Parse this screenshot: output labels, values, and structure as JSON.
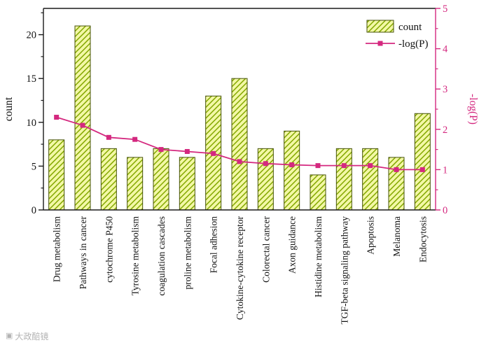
{
  "figure": {
    "watermark_icon": "▣",
    "watermark_text": "大政醅镜"
  },
  "chart_data": {
    "type": "bar",
    "categories": [
      "Drug metabolism",
      "Pathways in cancer",
      "cytochrome P450",
      "Tyrosine metabolism",
      "coagulation cascades",
      "proline metabolism",
      "Focal adhesion",
      "Cytokine-cytokine receptor",
      "Colorectal cancer",
      "Axon guidance",
      "Histidine metabolism",
      "TGF-beta signaling pathway",
      "Apoptosis",
      "Melanoma",
      "Endocytosis"
    ],
    "series": [
      {
        "name": "count",
        "type": "bar",
        "axis": "left",
        "values": [
          8,
          21,
          7,
          6,
          7,
          6,
          13,
          15,
          7,
          9,
          4,
          7,
          7,
          6,
          11
        ]
      },
      {
        "name": "-log(P)",
        "type": "line",
        "axis": "right",
        "values": [
          2.3,
          2.1,
          1.8,
          1.75,
          1.5,
          1.45,
          1.4,
          1.2,
          1.15,
          1.12,
          1.1,
          1.1,
          1.1,
          1.0,
          1.0
        ]
      }
    ],
    "left_axis": {
      "label": "count",
      "ticks": [
        0,
        5,
        10,
        15,
        20
      ],
      "min": 0,
      "max": 23
    },
    "right_axis": {
      "label": "-log(P)",
      "ticks": [
        0,
        1,
        2,
        3,
        4,
        5
      ],
      "min": 0,
      "max": 5
    },
    "legend": [
      {
        "label": "count",
        "swatch": "hatched-bar"
      },
      {
        "label": "-log(P)",
        "swatch": "line-square"
      }
    ],
    "grid": false,
    "legend_position": "top-right-inside",
    "colors": {
      "bar_fill": "#f3f8a6",
      "bar_hatch": "#84a800",
      "bar_border": "#46520a",
      "line": "#d4287f",
      "axis": "#1a1a1a"
    }
  }
}
